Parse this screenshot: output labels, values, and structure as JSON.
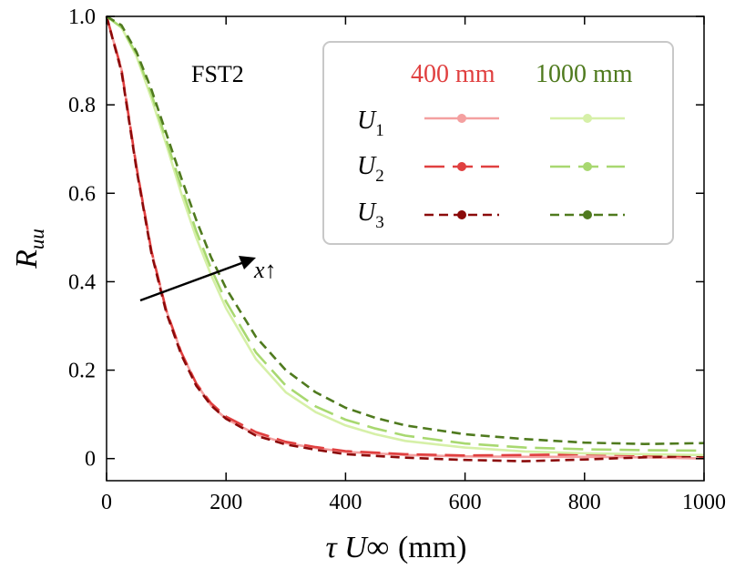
{
  "chart_data": {
    "type": "line",
    "title": "",
    "xlabel": "τ U∞ (mm)",
    "ylabel": "Ruu",
    "xlim": [
      0,
      1000
    ],
    "ylim": [
      -0.05,
      1.0
    ],
    "xticks": [
      0,
      200,
      400,
      600,
      800,
      1000
    ],
    "yticks": [
      0,
      0.2,
      0.4,
      0.6,
      0.8,
      1.0
    ],
    "xtick_labels": [
      "0",
      "200",
      "400",
      "600",
      "800",
      "1000"
    ],
    "ytick_labels": [
      "0",
      "0.2",
      "0.4",
      "0.6",
      "0.8",
      "1.0"
    ],
    "grid": false,
    "annotations": [
      {
        "text": "FST2"
      },
      {
        "text": "x↑"
      }
    ],
    "legend": {
      "placement": "top-right",
      "column_headers": [
        "400 mm",
        "1000 mm"
      ],
      "header_colors": [
        "#e04040",
        "#4f7a1e"
      ],
      "row_labels": [
        "U",
        "U",
        "U"
      ],
      "row_subscripts": [
        "1",
        "2",
        "3"
      ]
    },
    "series": [
      {
        "group": "400 mm",
        "row": "U1",
        "color": "#f4a0a0",
        "dash": "solid",
        "x": [
          0,
          25,
          50,
          75,
          100,
          125,
          150,
          175,
          200,
          250,
          300,
          350,
          400,
          500,
          600,
          700,
          800,
          900,
          1000
        ],
        "y": [
          1.0,
          0.88,
          0.66,
          0.47,
          0.335,
          0.24,
          0.17,
          0.12,
          0.09,
          0.055,
          0.035,
          0.024,
          0.015,
          0.008,
          0.005,
          0.004,
          0.004,
          0.003,
          0.0
        ]
      },
      {
        "group": "400 mm",
        "row": "U2",
        "color": "#e04040",
        "dash": "long",
        "x": [
          0,
          25,
          50,
          75,
          100,
          125,
          150,
          175,
          200,
          250,
          300,
          350,
          400,
          500,
          600,
          700,
          800,
          900,
          1000
        ],
        "y": [
          1.0,
          0.88,
          0.66,
          0.47,
          0.335,
          0.24,
          0.17,
          0.125,
          0.095,
          0.06,
          0.038,
          0.026,
          0.017,
          0.01,
          0.007,
          0.008,
          0.01,
          0.008,
          0.004
        ]
      },
      {
        "group": "400 mm",
        "row": "U3",
        "color": "#8b0a0a",
        "dash": "short",
        "x": [
          0,
          25,
          50,
          75,
          100,
          125,
          150,
          175,
          200,
          250,
          300,
          350,
          400,
          500,
          600,
          700,
          800,
          900,
          1000
        ],
        "y": [
          1.0,
          0.875,
          0.655,
          0.465,
          0.33,
          0.235,
          0.165,
          0.12,
          0.09,
          0.052,
          0.032,
          0.02,
          0.01,
          0.002,
          -0.003,
          -0.006,
          -0.002,
          0.003,
          0.006
        ]
      },
      {
        "group": "1000 mm",
        "row": "U1",
        "color": "#d6f0a8",
        "dash": "solid",
        "x": [
          0,
          25,
          50,
          75,
          100,
          125,
          150,
          175,
          200,
          250,
          300,
          350,
          400,
          450,
          500,
          600,
          700,
          800,
          900,
          1000
        ],
        "y": [
          1.0,
          0.975,
          0.91,
          0.815,
          0.71,
          0.6,
          0.5,
          0.415,
          0.34,
          0.225,
          0.15,
          0.105,
          0.075,
          0.055,
          0.04,
          0.025,
          0.016,
          0.012,
          0.01,
          0.008
        ]
      },
      {
        "group": "1000 mm",
        "row": "U2",
        "color": "#a8d870",
        "dash": "long",
        "x": [
          0,
          25,
          50,
          75,
          100,
          125,
          150,
          175,
          200,
          250,
          300,
          350,
          400,
          450,
          500,
          600,
          700,
          800,
          900,
          1000
        ],
        "y": [
          1.0,
          0.975,
          0.915,
          0.825,
          0.72,
          0.615,
          0.515,
          0.43,
          0.355,
          0.24,
          0.165,
          0.118,
          0.088,
          0.068,
          0.052,
          0.034,
          0.025,
          0.021,
          0.019,
          0.018
        ]
      },
      {
        "group": "1000 mm",
        "row": "U3",
        "color": "#4f7a1e",
        "dash": "short",
        "x": [
          0,
          25,
          50,
          75,
          100,
          125,
          150,
          175,
          200,
          250,
          300,
          350,
          400,
          450,
          500,
          600,
          700,
          800,
          900,
          1000
        ],
        "y": [
          1.0,
          0.98,
          0.92,
          0.835,
          0.735,
          0.635,
          0.54,
          0.455,
          0.385,
          0.275,
          0.2,
          0.15,
          0.115,
          0.092,
          0.075,
          0.055,
          0.044,
          0.036,
          0.033,
          0.035
        ]
      }
    ]
  }
}
